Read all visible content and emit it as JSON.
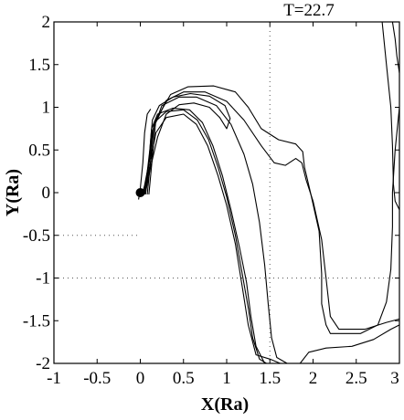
{
  "chart_data": {
    "type": "line",
    "title": "",
    "annotation": "T=22.7",
    "xlabel": "X(Ra)",
    "ylabel": "Y(Ra)",
    "xlim": [
      -1,
      3
    ],
    "ylim": [
      -2,
      2
    ],
    "xticks": [
      -1,
      -0.5,
      0,
      0.5,
      1,
      1.5,
      2,
      2.5,
      3
    ],
    "yticks": [
      -2,
      -1.5,
      -1,
      -0.5,
      0,
      0.5,
      1,
      1.5,
      2
    ],
    "xtick_labels": [
      "-1",
      "-0.5",
      "0",
      "0.5",
      "1",
      "1.5",
      "2",
      "2.5",
      "3"
    ],
    "ytick_labels": [
      "-2",
      "-1.5",
      "-1",
      "-0.5",
      "0",
      "0.5",
      "1",
      "1.5",
      "2"
    ],
    "reference_lines": [
      {
        "orientation": "vertical",
        "x": 1.5,
        "style": "dotted"
      },
      {
        "orientation": "horizontal",
        "y": -0.5,
        "x_range": [
          -1,
          0
        ],
        "style": "dotted"
      },
      {
        "orientation": "horizontal",
        "y": -1,
        "x_range": [
          -1,
          3
        ],
        "style": "dotted"
      }
    ],
    "origin_marker": {
      "x": 0,
      "y": 0
    },
    "series": [
      {
        "points": [
          [
            0.02,
            -0.02
          ],
          [
            0.07,
            0.15
          ],
          [
            0.11,
            0.5
          ],
          [
            0.14,
            0.85
          ],
          [
            0.22,
            1.02
          ],
          [
            0.38,
            1.12
          ],
          [
            0.58,
            1.16
          ],
          [
            0.8,
            1.13
          ],
          [
            0.98,
            1.02
          ],
          [
            1.04,
            0.87
          ],
          [
            1.0,
            0.75
          ],
          [
            0.92,
            0.88
          ],
          [
            0.8,
            1.0
          ],
          [
            0.62,
            1.05
          ],
          [
            0.45,
            1.03
          ],
          [
            0.3,
            0.92
          ],
          [
            0.2,
            0.65
          ],
          [
            0.12,
            0.3
          ],
          [
            0.06,
            0.0
          ]
        ]
      },
      {
        "points": [
          [
            0.03,
            -0.02
          ],
          [
            0.1,
            0.35
          ],
          [
            0.13,
            0.75
          ],
          [
            0.2,
            0.92
          ],
          [
            0.38,
            0.99
          ],
          [
            0.57,
            0.97
          ],
          [
            0.72,
            0.82
          ],
          [
            0.84,
            0.55
          ],
          [
            0.95,
            0.2
          ],
          [
            1.05,
            -0.2
          ],
          [
            1.15,
            -0.65
          ],
          [
            1.23,
            -1.05
          ],
          [
            1.28,
            -1.45
          ],
          [
            1.34,
            -1.8
          ],
          [
            1.44,
            -2.0
          ]
        ]
      },
      {
        "points": [
          [
            0.04,
            -0.02
          ],
          [
            0.12,
            0.45
          ],
          [
            0.16,
            0.82
          ],
          [
            0.3,
            0.95
          ],
          [
            0.5,
            0.97
          ],
          [
            0.66,
            0.85
          ],
          [
            0.79,
            0.62
          ],
          [
            0.9,
            0.3
          ],
          [
            1.0,
            -0.05
          ],
          [
            1.1,
            -0.5
          ],
          [
            1.18,
            -0.95
          ],
          [
            1.25,
            -1.35
          ],
          [
            1.3,
            -1.7
          ],
          [
            1.38,
            -1.95
          ],
          [
            1.46,
            -2.0
          ]
        ]
      },
      {
        "points": [
          [
            0.05,
            -0.02
          ],
          [
            0.18,
            0.7
          ],
          [
            0.3,
            0.88
          ],
          [
            0.5,
            0.92
          ],
          [
            0.65,
            0.8
          ],
          [
            0.78,
            0.55
          ],
          [
            0.9,
            0.2
          ],
          [
            1.0,
            -0.15
          ],
          [
            1.1,
            -0.6
          ],
          [
            1.18,
            -1.1
          ],
          [
            1.25,
            -1.55
          ],
          [
            1.34,
            -1.9
          ],
          [
            1.5,
            -1.95
          ],
          [
            1.62,
            -2.0
          ]
        ]
      },
      {
        "points": [
          [
            0.06,
            -0.02
          ],
          [
            0.14,
            0.72
          ],
          [
            0.25,
            1.02
          ],
          [
            0.45,
            1.12
          ],
          [
            0.65,
            1.12
          ],
          [
            0.88,
            1.02
          ],
          [
            1.05,
            0.8
          ],
          [
            1.2,
            0.45
          ],
          [
            1.3,
            0.1
          ],
          [
            1.38,
            -0.35
          ],
          [
            1.44,
            -0.85
          ],
          [
            1.48,
            -1.3
          ],
          [
            1.52,
            -1.7
          ],
          [
            1.58,
            -1.93
          ],
          [
            1.7,
            -2.0
          ]
        ]
      },
      {
        "points": [
          [
            0.08,
            -0.02
          ],
          [
            0.16,
            0.78
          ],
          [
            0.3,
            1.08
          ],
          [
            0.5,
            1.18
          ],
          [
            0.75,
            1.18
          ],
          [
            1.0,
            1.07
          ],
          [
            1.2,
            0.85
          ],
          [
            1.4,
            0.55
          ],
          [
            1.55,
            0.35
          ],
          [
            1.68,
            0.32
          ],
          [
            1.8,
            0.4
          ],
          [
            1.87,
            0.35
          ],
          [
            1.92,
            0.15
          ],
          [
            2.0,
            -0.1
          ],
          [
            2.1,
            -0.55
          ],
          [
            2.15,
            -1.0
          ],
          [
            2.2,
            -1.45
          ],
          [
            2.3,
            -1.6
          ],
          [
            2.6,
            -1.6
          ],
          [
            2.85,
            -1.52
          ],
          [
            3.0,
            -1.48
          ]
        ]
      },
      {
        "points": [
          [
            0.1,
            -0.02
          ],
          [
            0.18,
            0.85
          ],
          [
            0.35,
            1.15
          ],
          [
            0.55,
            1.24
          ],
          [
            0.85,
            1.25
          ],
          [
            1.1,
            1.18
          ],
          [
            1.25,
            1.0
          ],
          [
            1.4,
            0.75
          ],
          [
            1.6,
            0.62
          ],
          [
            1.8,
            0.57
          ],
          [
            1.88,
            0.48
          ],
          [
            1.9,
            0.3
          ],
          [
            1.97,
            0.0
          ],
          [
            2.07,
            -0.45
          ],
          [
            2.1,
            -0.95
          ],
          [
            2.1,
            -1.3
          ],
          [
            2.15,
            -1.55
          ],
          [
            2.2,
            -1.65
          ],
          [
            2.55,
            -1.65
          ],
          [
            2.75,
            -1.55
          ],
          [
            2.85,
            -1.28
          ],
          [
            2.9,
            -0.9
          ],
          [
            2.92,
            -0.4
          ],
          [
            2.92,
            0.0
          ],
          [
            2.95,
            0.5
          ],
          [
            3.0,
            1.0
          ]
        ]
      },
      {
        "points": [
          [
            2.8,
            2.0
          ],
          [
            2.85,
            1.5
          ],
          [
            2.9,
            1.0
          ],
          [
            2.92,
            0.55
          ],
          [
            2.93,
            0.1
          ],
          [
            2.95,
            -0.1
          ],
          [
            3.0,
            -0.2
          ]
        ]
      },
      {
        "points": [
          [
            3.0,
            1.4
          ],
          [
            2.97,
            1.6
          ],
          [
            2.95,
            1.8
          ],
          [
            2.92,
            2.0
          ]
        ]
      },
      {
        "points": [
          [
            1.85,
            -2.0
          ],
          [
            1.95,
            -1.87
          ],
          [
            2.15,
            -1.82
          ],
          [
            2.45,
            -1.8
          ],
          [
            2.7,
            -1.72
          ],
          [
            2.9,
            -1.6
          ],
          [
            3.0,
            -1.55
          ]
        ]
      },
      {
        "points": [
          [
            -0.02,
            -0.08
          ],
          [
            0.0,
            0.05
          ],
          [
            0.03,
            0.35
          ],
          [
            0.05,
            0.7
          ],
          [
            0.08,
            0.92
          ],
          [
            0.12,
            0.98
          ]
        ]
      }
    ]
  }
}
